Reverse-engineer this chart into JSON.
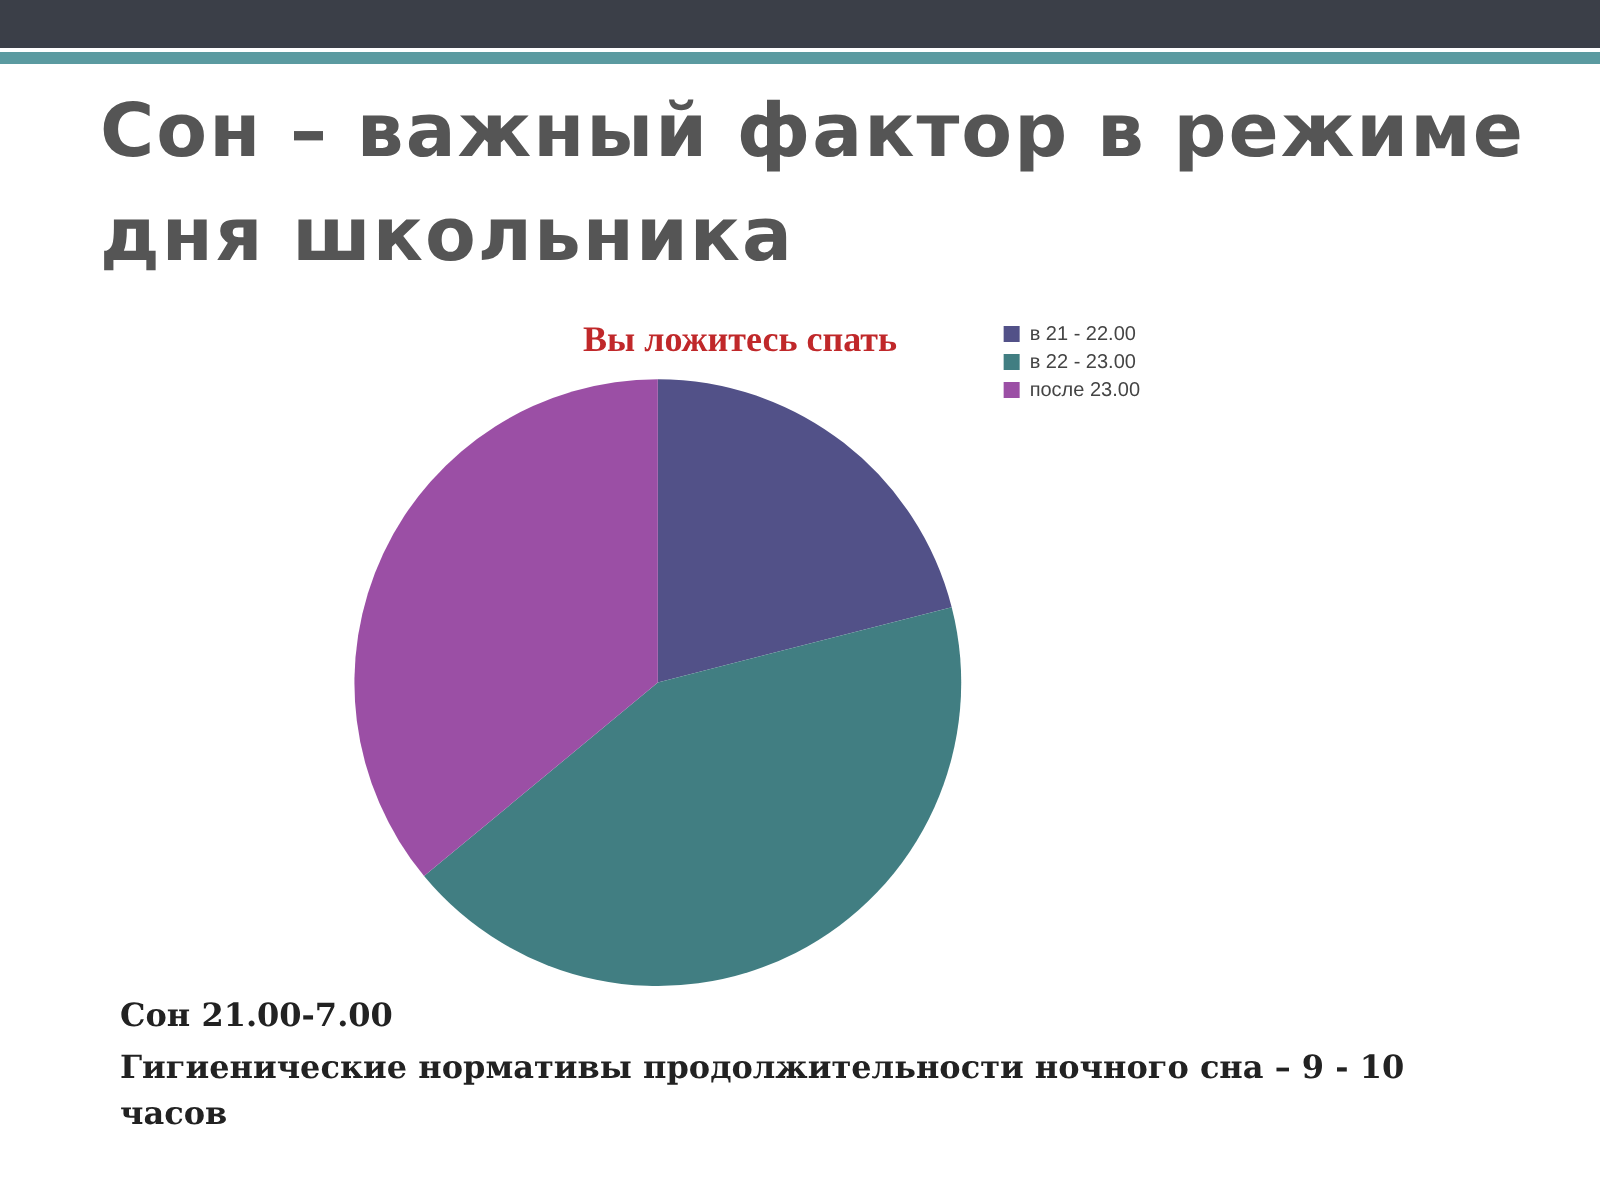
{
  "chart_data": {
    "type": "pie",
    "title": "Сон – важный фактор в режиме дня школьника",
    "subtitle": "Вы ложитесь спать",
    "categories": [
      "в 21 - 22.00",
      "в 22 - 23.00",
      "после 23.00"
    ],
    "values": [
      21,
      43,
      36
    ],
    "colors": [
      "#525188",
      "#417e82",
      "#9b4fa5"
    ],
    "legend": "top right",
    "annotations": [
      "Сон 21.00-7.00",
      "Гигиенические нормативы продолжительности ночного сна – 9 - 10 часов"
    ]
  }
}
